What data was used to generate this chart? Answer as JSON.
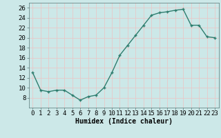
{
  "xlabel": "Humidex (Indice chaleur)",
  "x_values": [
    0,
    1,
    2,
    3,
    4,
    5,
    6,
    7,
    8,
    9,
    10,
    11,
    12,
    13,
    14,
    15,
    16,
    17,
    18,
    19,
    20,
    21,
    22,
    23
  ],
  "y_values": [
    13,
    9.5,
    9.2,
    9.5,
    9.5,
    8.5,
    7.5,
    8.2,
    8.5,
    10,
    13,
    16.5,
    18.5,
    20.5,
    22.5,
    24.5,
    25,
    25.2,
    25.5,
    25.7,
    22.5,
    22.5,
    20.2,
    20
  ],
  "line_color": "#2e7d6e",
  "marker": "+",
  "background_color": "#cce8e8",
  "grid_color": "#e8c8c8",
  "ylim": [
    6,
    27
  ],
  "yticks": [
    8,
    10,
    12,
    14,
    16,
    18,
    20,
    22,
    24,
    26
  ],
  "xticks": [
    0,
    1,
    2,
    3,
    4,
    5,
    6,
    7,
    8,
    9,
    10,
    11,
    12,
    13,
    14,
    15,
    16,
    17,
    18,
    19,
    20,
    21,
    22,
    23
  ],
  "xtick_labels": [
    "0",
    "1",
    "2",
    "3",
    "4",
    "5",
    "6",
    "7",
    "8",
    "9",
    "10",
    "11",
    "12",
    "13",
    "14",
    "15",
    "16",
    "17",
    "18",
    "19",
    "20",
    "21",
    "22",
    "23"
  ],
  "xlabel_fontsize": 7,
  "tick_fontsize": 6.5,
  "line_width": 1.0,
  "marker_size": 3
}
